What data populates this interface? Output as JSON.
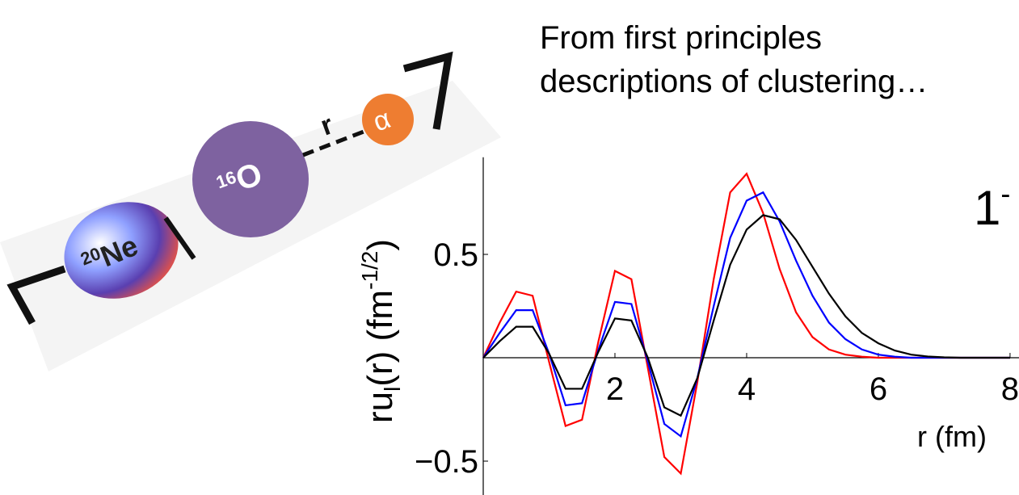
{
  "heading": [
    "From first principles",
    "descriptions of clustering…"
  ],
  "diagram": {
    "ne": [
      "20",
      "Ne"
    ],
    "o": [
      "16",
      "O"
    ],
    "r": "r",
    "alpha": "α"
  },
  "chart_data": {
    "type": "line",
    "xlabel": "r (fm)",
    "ylabel": [
      "ru",
      "l",
      "(r) (fm",
      "-1/2",
      ")"
    ],
    "annotation": [
      "1",
      "-"
    ],
    "x": [
      0,
      0.25,
      0.5,
      0.75,
      1.0,
      1.25,
      1.5,
      1.75,
      2.0,
      2.25,
      2.5,
      2.75,
      3.0,
      3.25,
      3.5,
      3.75,
      4.0,
      4.25,
      4.5,
      4.75,
      5.0,
      5.25,
      5.5,
      5.75,
      6.0,
      6.25,
      6.5,
      6.75,
      7.0,
      7.25,
      7.5,
      7.75,
      8.0
    ],
    "series": [
      {
        "color": "#ff0000",
        "values": [
          0,
          0.17,
          0.32,
          0.3,
          -0.02,
          -0.33,
          -0.3,
          0.08,
          0.42,
          0.38,
          -0.05,
          -0.48,
          -0.56,
          -0.12,
          0.38,
          0.8,
          0.89,
          0.7,
          0.43,
          0.22,
          0.1,
          0.04,
          0.015,
          0.005,
          0,
          0,
          0,
          0,
          0,
          0,
          0,
          0,
          0
        ]
      },
      {
        "color": "#0000ff",
        "values": [
          0,
          0.12,
          0.23,
          0.23,
          0.02,
          -0.23,
          -0.22,
          0.04,
          0.27,
          0.26,
          -0.02,
          -0.32,
          -0.38,
          -0.1,
          0.25,
          0.58,
          0.76,
          0.8,
          0.66,
          0.47,
          0.3,
          0.17,
          0.09,
          0.04,
          0.015,
          0.005,
          0,
          0,
          0,
          0,
          0,
          0,
          0
        ]
      },
      {
        "color": "#000000",
        "values": [
          0,
          0.08,
          0.15,
          0.15,
          0.02,
          -0.15,
          -0.15,
          0.03,
          0.19,
          0.18,
          0,
          -0.24,
          -0.28,
          -0.1,
          0.18,
          0.45,
          0.62,
          0.69,
          0.67,
          0.57,
          0.44,
          0.31,
          0.2,
          0.12,
          0.07,
          0.035,
          0.015,
          0.006,
          0.002,
          0,
          0,
          0,
          0
        ]
      }
    ],
    "xlim": [
      0,
      8.05
    ],
    "xticks": [
      2,
      4,
      6,
      8
    ],
    "ylim": [
      -0.66,
      0.97
    ],
    "yticks": [
      0.5,
      {
        "value": -0.5,
        "label": "−0.5"
      }
    ]
  }
}
